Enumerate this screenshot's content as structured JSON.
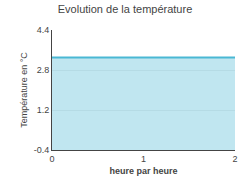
{
  "chart_data": {
    "type": "area",
    "title": "Evolution de la température",
    "xlabel": "heure par heure",
    "ylabel": "Température en °C",
    "x": [
      0,
      2
    ],
    "values": [
      3.3,
      3.3
    ],
    "color": "#4ab8d4",
    "xlim": [
      0,
      2
    ],
    "ylim": [
      -0.4,
      4.4
    ],
    "xticks": [
      0,
      1,
      2
    ],
    "yticks": [
      -0.4,
      1.2,
      2.8,
      4.4
    ],
    "grid": true
  }
}
